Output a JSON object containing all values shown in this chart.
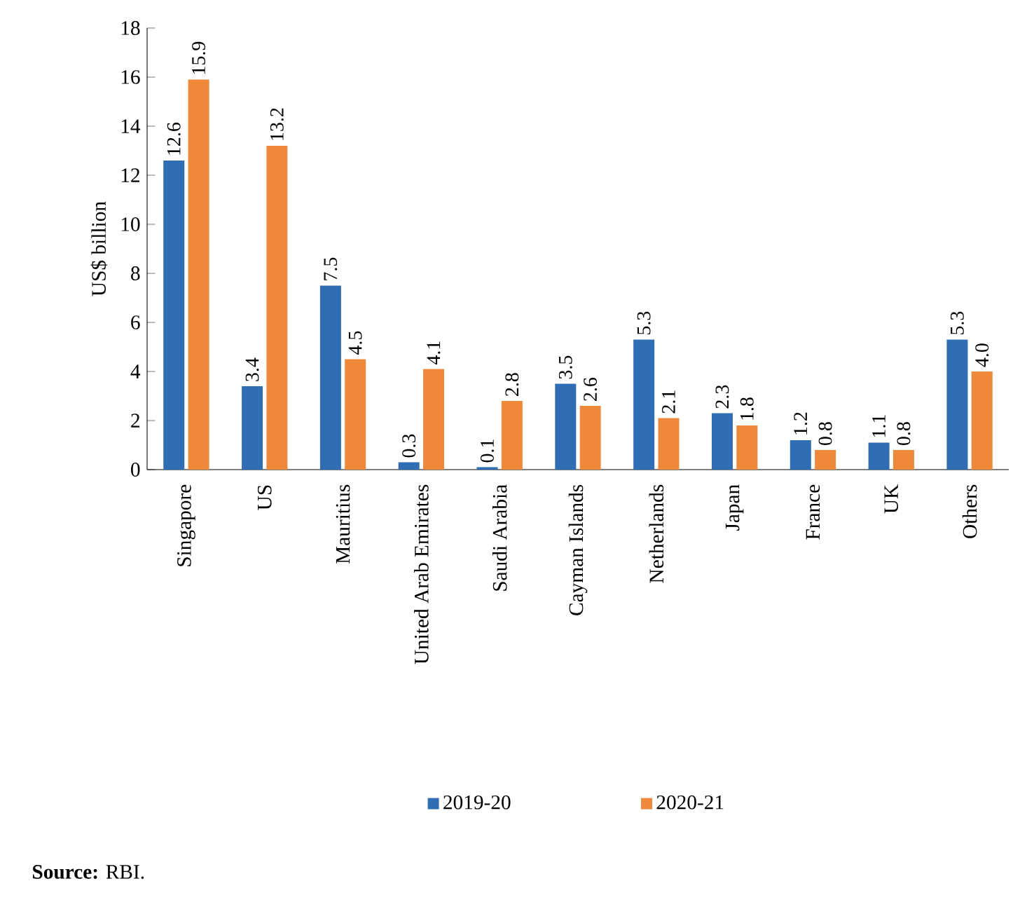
{
  "chart_data": {
    "type": "bar",
    "ylabel": "US$ billion",
    "categories": [
      "Singapore",
      "US",
      "Mauritius",
      "United Arab Emirates",
      "Saudi Arabia",
      "Cayman Islands",
      "Netherlands",
      "Japan",
      "France",
      "UK",
      "Others"
    ],
    "series": [
      {
        "name": "2019-20",
        "color": "#2f6db5",
        "values": [
          12.6,
          3.4,
          7.5,
          0.3,
          0.1,
          3.5,
          5.3,
          2.3,
          1.2,
          1.1,
          5.3
        ],
        "value_labels": [
          "12.6",
          "3.4",
          "7.5",
          "0.3",
          "0.1",
          "3.5",
          "5.3",
          "2.3",
          "1.2",
          "1.1",
          "5.3"
        ]
      },
      {
        "name": "2020-21",
        "color": "#f0883a",
        "values": [
          15.9,
          13.2,
          4.5,
          4.1,
          2.8,
          2.6,
          2.1,
          1.8,
          0.8,
          0.8,
          4.0
        ],
        "value_labels": [
          "15.9",
          "13.2",
          "4.5",
          "4.1",
          "2.8",
          "2.6",
          "2.1",
          "1.8",
          "0.8",
          "0.8",
          "4.0"
        ]
      }
    ],
    "ylim": [
      0,
      18
    ],
    "yticks": [
      0,
      2,
      4,
      6,
      8,
      10,
      12,
      14,
      16,
      18
    ],
    "legend": "bottom",
    "annotations": [
      "**Source:** RBI."
    ]
  }
}
